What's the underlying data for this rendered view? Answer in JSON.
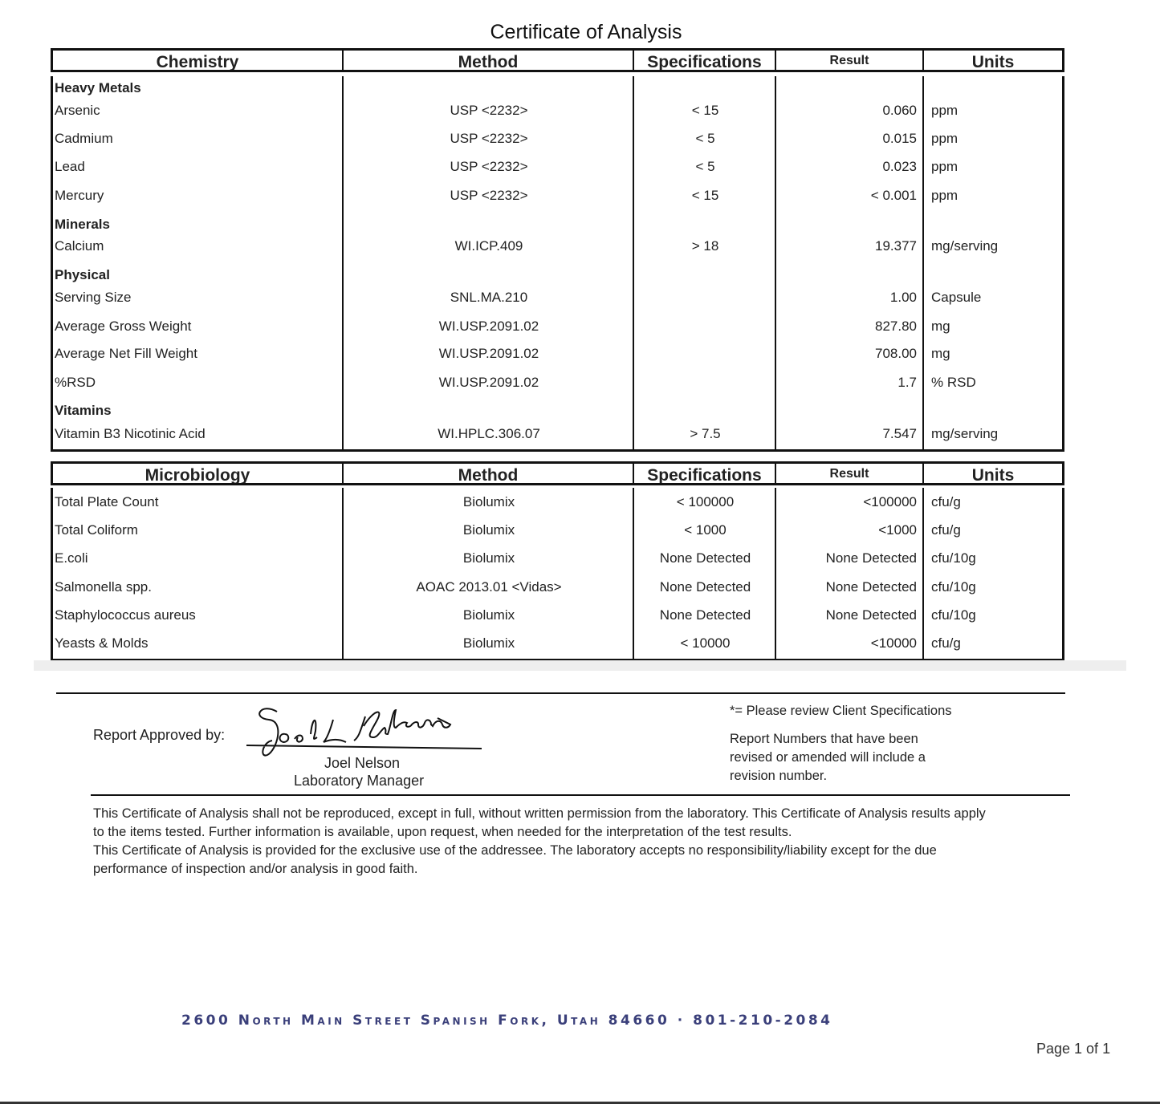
{
  "title": "Certificate of Analysis",
  "chemistry": {
    "headers": [
      "Chemistry",
      "Method",
      "Specifications",
      "Result",
      "Units"
    ],
    "rows": [
      {
        "group": "Heavy Metals"
      },
      {
        "name": "Arsenic",
        "method": "USP <2232>",
        "spec": "< 15",
        "result": "0.060",
        "units": "ppm"
      },
      {
        "name": "Cadmium",
        "method": "USP <2232>",
        "spec": "< 5",
        "result": "0.015",
        "units": "ppm"
      },
      {
        "name": "Lead",
        "method": "USP <2232>",
        "spec": "< 5",
        "result": "0.023",
        "units": "ppm"
      },
      {
        "name": "Mercury",
        "method": "USP <2232>",
        "spec": "< 15",
        "result": "< 0.001",
        "units": "ppm"
      },
      {
        "group": "Minerals"
      },
      {
        "name": "Calcium",
        "method": "WI.ICP.409",
        "spec": "> 18",
        "result": "19.377",
        "units": "mg/serving"
      },
      {
        "group": "Physical"
      },
      {
        "name": "Serving Size",
        "method": "SNL.MA.210",
        "spec": "",
        "result": "1.00",
        "units": "Capsule"
      },
      {
        "name": "Average Gross Weight",
        "method": "WI.USP.2091.02",
        "spec": "",
        "result": "827.80",
        "units": "mg"
      },
      {
        "name": "Average Net Fill Weight",
        "method": "WI.USP.2091.02",
        "spec": "",
        "result": "708.00",
        "units": "mg"
      },
      {
        "name": "%RSD",
        "method": "WI.USP.2091.02",
        "spec": "",
        "result": "1.7",
        "units": "% RSD"
      },
      {
        "group": "Vitamins"
      },
      {
        "name": "Vitamin B3 Nicotinic Acid",
        "method": "WI.HPLC.306.07",
        "spec": "> 7.5",
        "result": "7.547",
        "units": "mg/serving"
      }
    ]
  },
  "microbiology": {
    "headers": [
      "Microbiology",
      "Method",
      "Specifications",
      "Result",
      "Units"
    ],
    "rows": [
      {
        "name": "Total Plate Count",
        "method": "Biolumix",
        "spec": "< 100000",
        "result": "<100000",
        "units": "cfu/g"
      },
      {
        "name": "Total Coliform",
        "method": "Biolumix",
        "spec": "< 1000",
        "result": "<1000",
        "units": "cfu/g"
      },
      {
        "name": "E.coli",
        "method": "Biolumix",
        "spec": "None Detected",
        "result": "None Detected",
        "units": "cfu/10g"
      },
      {
        "name": "Salmonella spp.",
        "method": "AOAC 2013.01 <Vidas>",
        "spec": "None Detected",
        "result": "None Detected",
        "units": "cfu/10g"
      },
      {
        "name": "Staphylococcus aureus",
        "method": "Biolumix",
        "spec": "None Detected",
        "result": "None Detected",
        "units": "cfu/10g"
      },
      {
        "name": "Yeasts & Molds",
        "method": "Biolumix",
        "spec": "< 10000",
        "result": "<10000",
        "units": "cfu/g"
      }
    ]
  },
  "approval": {
    "label": "Report Approved by:",
    "signature": "Joel L Nelson",
    "name": "Joel Nelson",
    "role": "Laboratory Manager"
  },
  "notes": {
    "client_spec": "*= Please review Client Specifications",
    "revision": [
      "Report Numbers that have been",
      "revised or amended will include a",
      "revision number."
    ]
  },
  "disclaimer": [
    "This Certificate of Analysis shall not be reproduced, except in full, without written permission from the laboratory. This Certificate of Analysis results apply",
    "to the items tested. Further information is available, upon request, when needed for the interpretation of the test results.",
    "This Certificate of Analysis is provided for the exclusive use of the addressee. The laboratory accepts no responsibility/liability except for the due",
    "performance of inspection and/or analysis in good faith."
  ],
  "footer": {
    "address": "2600 North Main Street Spanish Fork, Utah  84660 · 801-210-2084",
    "page": "Page 1 of 1"
  },
  "colors": {
    "address": "#3a3f7a"
  }
}
